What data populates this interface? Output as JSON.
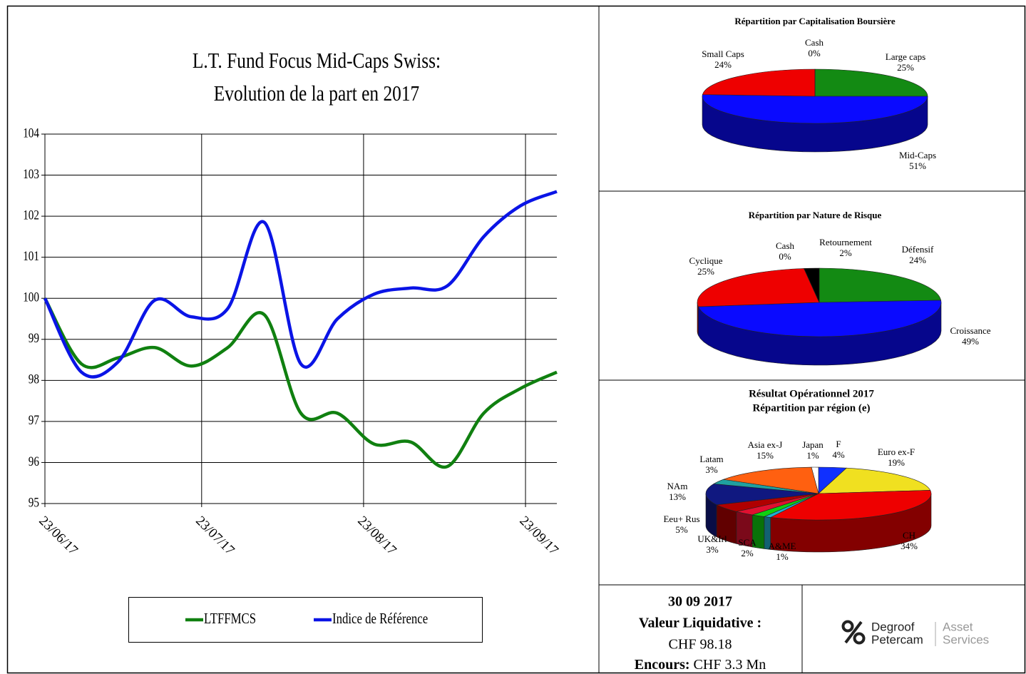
{
  "chart_data": [
    {
      "type": "line",
      "title": "L.T. Fund Focus Mid-Caps Swiss:",
      "subtitle": "Evolution de la part en  2017",
      "x": [
        "23/06/17",
        "30/06/17",
        "07/07/17",
        "14/07/17",
        "21/07/17",
        "28/07/17",
        "04/08/17",
        "11/08/17",
        "18/08/17",
        "25/08/17",
        "01/09/17",
        "08/09/17",
        "15/09/17",
        "22/09/17",
        "29/09/17"
      ],
      "series": [
        {
          "name": "LTFFMCS",
          "color": "#108010",
          "values": [
            100,
            98.4,
            98.55,
            98.8,
            98.35,
            98.8,
            99.6,
            97.2,
            97.2,
            96.45,
            96.5,
            95.9,
            97.2,
            97.8,
            98.2
          ]
        },
        {
          "name": "Indice de Référence",
          "color": "#0a14e6",
          "values": [
            100,
            98.2,
            98.45,
            99.95,
            99.55,
            99.75,
            101.85,
            98.4,
            99.5,
            100.1,
            100.25,
            100.3,
            101.5,
            102.25,
            102.6
          ]
        }
      ],
      "xlim": [
        "23/06/17",
        "29/09/17"
      ],
      "xticks": [
        "23/06/17",
        "23/07/17",
        "23/08/17",
        "23/09/17"
      ],
      "ylim": [
        95,
        104
      ],
      "yticks": [
        95,
        96,
        97,
        98,
        99,
        100,
        101,
        102,
        103,
        104
      ],
      "grid": true,
      "legend": "bottom"
    },
    {
      "type": "pie",
      "title": "Répartition par  Capitalisation Boursière",
      "categories": [
        "Large caps",
        "Mid-Caps",
        "Small Caps",
        "Cash"
      ],
      "values": [
        25,
        51,
        24,
        0
      ],
      "value_labels": [
        "25%",
        "51%",
        "24%",
        "0%"
      ],
      "colors": [
        "#138a13",
        "#0a0aff",
        "#ee0000",
        "#cccccc"
      ]
    },
    {
      "type": "pie",
      "title": "Répartition par Nature de Risque",
      "categories": [
        "Défensif",
        "Croissance",
        "Cyclique",
        "Cash",
        "Retournement"
      ],
      "values": [
        24,
        49,
        25,
        0,
        2
      ],
      "value_labels": [
        "24%",
        "49%",
        "25%",
        "0%",
        "2%"
      ],
      "colors": [
        "#138a13",
        "#0a0aff",
        "#ee0000",
        "#cccccc",
        "#000000"
      ]
    },
    {
      "type": "pie",
      "title": "Résultat Opérationnel 2017",
      "subtitle": "Répartition par région (e)",
      "categories": [
        "F",
        "Euro ex-F",
        "CH",
        "A&ME",
        "SCA",
        "UK&Irl",
        "Eeu+ Rus",
        "NAm",
        "Latam",
        "Asia ex-J",
        "Japan"
      ],
      "values": [
        4,
        19,
        34,
        1,
        2,
        3,
        5,
        13,
        3,
        15,
        1
      ],
      "value_labels": [
        "4%",
        "19%",
        "34%",
        "1%",
        "2%",
        "3%",
        "5%",
        "13%",
        "3%",
        "15%",
        "1%"
      ],
      "colors": [
        "#1030ff",
        "#f0e020",
        "#ee0000",
        "#20b0d0",
        "#10d010",
        "#e01030",
        "#b00000",
        "#101880",
        "#20a0a0",
        "#ff6010",
        "#ffffff"
      ]
    }
  ],
  "info": {
    "date": "30 09 2017",
    "nav_label": "Valeur Liquidative :",
    "nav_value": "CHF 98.18",
    "aum_label": "Encours:",
    "aum_value": "CHF 3.3 Mn"
  },
  "logo": {
    "name_1": "Degroof",
    "name_2": "Petercam",
    "unit_1": "Asset",
    "unit_2": "Services"
  }
}
